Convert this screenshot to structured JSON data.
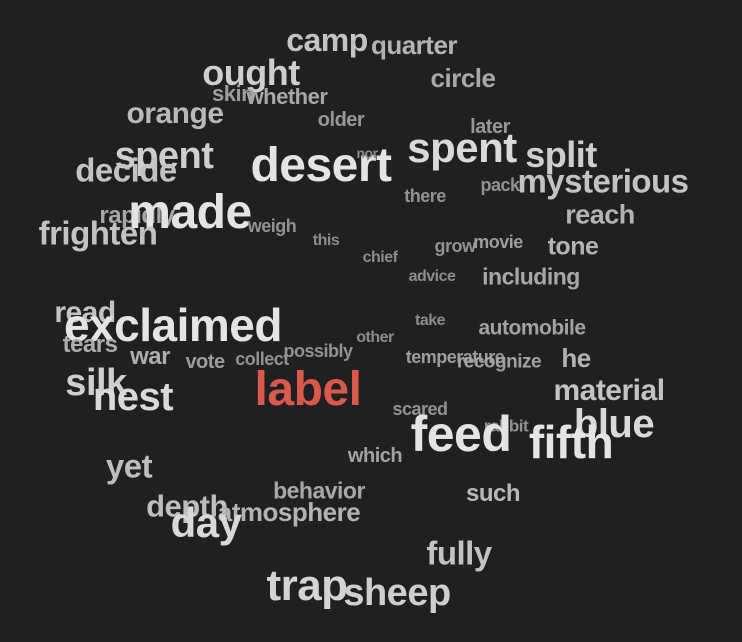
{
  "word_cloud": {
    "highlight_color": "#d9594c",
    "words": [
      {
        "text": "camp",
        "weight": 0.7
      },
      {
        "text": "quarter",
        "weight": 0.55
      },
      {
        "text": "ought",
        "weight": 0.8
      },
      {
        "text": "circle",
        "weight": 0.45
      },
      {
        "text": "skin",
        "weight": 0.35
      },
      {
        "text": "whether",
        "weight": 0.45
      },
      {
        "text": "orange",
        "weight": 0.6
      },
      {
        "text": "older",
        "weight": 0.3
      },
      {
        "text": "later",
        "weight": 0.3
      },
      {
        "text": "spent",
        "weight": 0.8
      },
      {
        "text": "desert",
        "weight": 1.0
      },
      {
        "text": "spent",
        "weight": 0.9
      },
      {
        "text": "split",
        "weight": 0.8
      },
      {
        "text": "decide",
        "weight": 0.7
      },
      {
        "text": "nor",
        "weight": 0.2
      },
      {
        "text": "pack",
        "weight": 0.25
      },
      {
        "text": "mysterious",
        "weight": 0.7
      },
      {
        "text": "there",
        "weight": 0.25
      },
      {
        "text": "rapidly",
        "weight": 0.45
      },
      {
        "text": "made",
        "weight": 1.0
      },
      {
        "text": "reach",
        "weight": 0.55
      },
      {
        "text": "weigh",
        "weight": 0.25
      },
      {
        "text": "frighten",
        "weight": 0.7
      },
      {
        "text": "this",
        "weight": 0.2
      },
      {
        "text": "grow",
        "weight": 0.25
      },
      {
        "text": "movie",
        "weight": 0.35
      },
      {
        "text": "tone",
        "weight": 0.55
      },
      {
        "text": "chief",
        "weight": 0.2
      },
      {
        "text": "advice",
        "weight": 0.2
      },
      {
        "text": "including",
        "weight": 0.45
      },
      {
        "text": "read",
        "weight": 0.7
      },
      {
        "text": "exclaimed",
        "weight": 1.0
      },
      {
        "text": "take",
        "weight": 0.2
      },
      {
        "text": "automobile",
        "weight": 0.4
      },
      {
        "text": "other",
        "weight": 0.2
      },
      {
        "text": "tears",
        "weight": 0.5
      },
      {
        "text": "war",
        "weight": 0.5
      },
      {
        "text": "vote",
        "weight": 0.35
      },
      {
        "text": "collect",
        "weight": 0.25
      },
      {
        "text": "possibly",
        "weight": 0.25
      },
      {
        "text": "temperature",
        "weight": 0.35
      },
      {
        "text": "recognize",
        "weight": 0.4
      },
      {
        "text": "he",
        "weight": 0.55
      },
      {
        "text": "silk",
        "weight": 0.8
      },
      {
        "text": "nest",
        "weight": 0.9
      },
      {
        "text": "label",
        "weight": 1.0,
        "highlight": true
      },
      {
        "text": "material",
        "weight": 0.7
      },
      {
        "text": "scared",
        "weight": 0.25
      },
      {
        "text": "rabbit",
        "weight": 0.25
      },
      {
        "text": "blue",
        "weight": 0.9
      },
      {
        "text": "feed",
        "weight": 1.0
      },
      {
        "text": "fifth",
        "weight": 1.0
      },
      {
        "text": "which",
        "weight": 0.4
      },
      {
        "text": "yet",
        "weight": 0.65
      },
      {
        "text": "behavior",
        "weight": 0.45
      },
      {
        "text": "such",
        "weight": 0.6
      },
      {
        "text": "depth",
        "weight": 0.65
      },
      {
        "text": "atmosphere",
        "weight": 0.55
      },
      {
        "text": "day",
        "weight": 0.9
      },
      {
        "text": "fully",
        "weight": 0.7
      },
      {
        "text": "trap",
        "weight": 0.85
      },
      {
        "text": "sheep",
        "weight": 0.8
      }
    ]
  }
}
